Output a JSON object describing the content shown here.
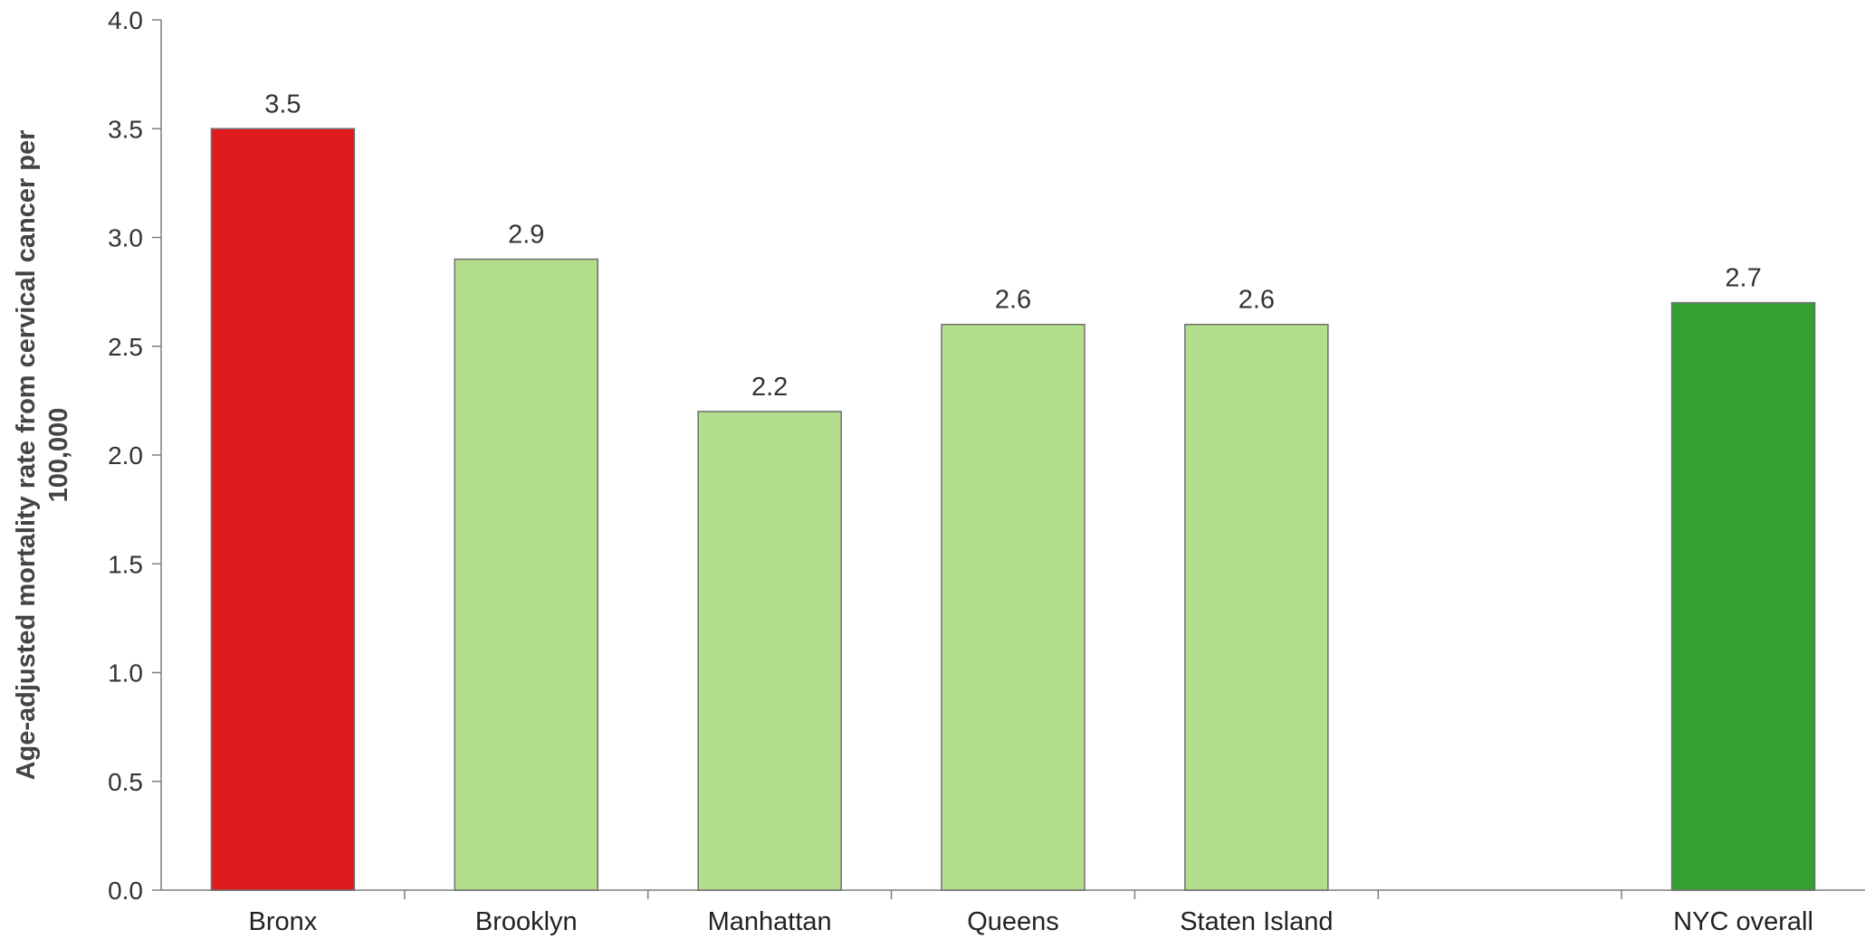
{
  "chart_data": {
    "type": "bar",
    "ylabel_lines": [
      "Age-adjusted mortality rate from cervical cancer per",
      "100,000"
    ],
    "xlabel": "",
    "ylim": [
      0,
      4
    ],
    "yticks": [
      "0.0",
      "0.5",
      "1.0",
      "1.5",
      "2.0",
      "2.5",
      "3.0",
      "3.5",
      "4.0"
    ],
    "ytick_values": [
      0,
      0.5,
      1.0,
      1.5,
      2.0,
      2.5,
      3.0,
      3.5,
      4.0
    ],
    "grid": false,
    "categories": [
      "Bronx",
      "Brooklyn",
      "Manhattan",
      "Queens",
      "Staten Island",
      "",
      "NYC overall"
    ],
    "values": [
      3.5,
      2.9,
      2.2,
      2.6,
      2.6,
      null,
      2.7
    ],
    "value_labels": [
      "3.5",
      "2.9",
      "2.2",
      "2.6",
      "2.6",
      "",
      "2.7"
    ],
    "bar_colors": [
      "#e01b1e",
      "#b3df8c",
      "#b3df8c",
      "#b3df8c",
      "#b3df8c",
      "",
      "#34a02f"
    ]
  }
}
